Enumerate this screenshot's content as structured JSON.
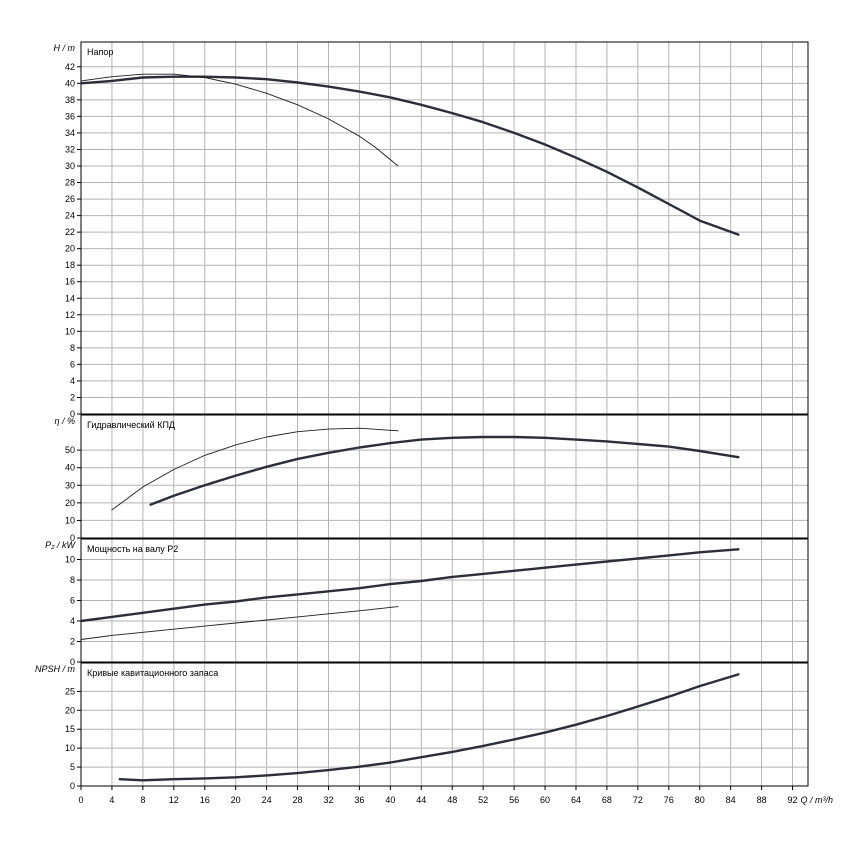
{
  "chart_data": {
    "type": "line",
    "colors": {
      "grid": "#b4b4b4",
      "frame": "#000000",
      "curve_main": "#2a2f3a",
      "curve_thin": "#1e1e1e"
    },
    "x": {
      "label": "Q / m³/h",
      "ticks": [
        0,
        4,
        8,
        12,
        16,
        20,
        24,
        28,
        32,
        36,
        40,
        44,
        48,
        52,
        56,
        60,
        64,
        68,
        72,
        76,
        80,
        84,
        88,
        92
      ],
      "range": [
        0,
        94
      ]
    },
    "panels": [
      {
        "id": "head",
        "title": "Напор",
        "ylabel": "H / m",
        "yrange": [
          0,
          45
        ],
        "yticks": [
          0,
          2,
          4,
          6,
          8,
          10,
          12,
          14,
          16,
          18,
          20,
          22,
          24,
          26,
          28,
          30,
          32,
          34,
          36,
          38,
          40,
          42
        ],
        "series": [
          {
            "weight": "thick",
            "points": [
              [
                0,
                40.0
              ],
              [
                4,
                40.3
              ],
              [
                8,
                40.7
              ],
              [
                12,
                40.8
              ],
              [
                16,
                40.8
              ],
              [
                20,
                40.7
              ],
              [
                24,
                40.5
              ],
              [
                28,
                40.1
              ],
              [
                32,
                39.6
              ],
              [
                36,
                39.0
              ],
              [
                40,
                38.3
              ],
              [
                44,
                37.4
              ],
              [
                48,
                36.4
              ],
              [
                52,
                35.3
              ],
              [
                56,
                34.0
              ],
              [
                60,
                32.6
              ],
              [
                64,
                31.0
              ],
              [
                68,
                29.3
              ],
              [
                72,
                27.4
              ],
              [
                76,
                25.4
              ],
              [
                80,
                23.4
              ],
              [
                85,
                21.7
              ]
            ]
          },
          {
            "weight": "thin",
            "points": [
              [
                0,
                40.3
              ],
              [
                4,
                40.8
              ],
              [
                8,
                41.1
              ],
              [
                12,
                41.1
              ],
              [
                16,
                40.7
              ],
              [
                20,
                39.9
              ],
              [
                24,
                38.8
              ],
              [
                28,
                37.4
              ],
              [
                32,
                35.7
              ],
              [
                36,
                33.6
              ],
              [
                38,
                32.3
              ],
              [
                41,
                30.0
              ]
            ]
          }
        ]
      },
      {
        "id": "efficiency",
        "title": "Гидравлический КПД",
        "ylabel": "η / %",
        "yrange": [
          0,
          70
        ],
        "yticks": [
          0,
          10,
          20,
          30,
          40,
          50
        ],
        "series": [
          {
            "weight": "thick",
            "points": [
              [
                9,
                19
              ],
              [
                12,
                24
              ],
              [
                16,
                30
              ],
              [
                20,
                35.5
              ],
              [
                24,
                40.5
              ],
              [
                28,
                45
              ],
              [
                32,
                48.5
              ],
              [
                36,
                51.5
              ],
              [
                40,
                54
              ],
              [
                44,
                56
              ],
              [
                48,
                57
              ],
              [
                52,
                57.5
              ],
              [
                56,
                57.5
              ],
              [
                60,
                57
              ],
              [
                64,
                56
              ],
              [
                68,
                55
              ],
              [
                72,
                53.5
              ],
              [
                76,
                52
              ],
              [
                80,
                49.5
              ],
              [
                85,
                46
              ]
            ]
          },
          {
            "weight": "thin",
            "points": [
              [
                4,
                16
              ],
              [
                8,
                29
              ],
              [
                12,
                39
              ],
              [
                16,
                47
              ],
              [
                20,
                53
              ],
              [
                24,
                57.5
              ],
              [
                28,
                60.5
              ],
              [
                32,
                62
              ],
              [
                36,
                62.5
              ],
              [
                41,
                61
              ]
            ]
          }
        ]
      },
      {
        "id": "power",
        "title": "Мощность на валу P2",
        "ylabel": "P₂ / kW",
        "yrange": [
          0,
          12
        ],
        "yticks": [
          0,
          2,
          4,
          6,
          8,
          10
        ],
        "series": [
          {
            "weight": "thick",
            "points": [
              [
                0,
                4.0
              ],
              [
                4,
                4.4
              ],
              [
                8,
                4.8
              ],
              [
                12,
                5.2
              ],
              [
                16,
                5.6
              ],
              [
                20,
                5.9
              ],
              [
                24,
                6.3
              ],
              [
                28,
                6.6
              ],
              [
                32,
                6.9
              ],
              [
                36,
                7.2
              ],
              [
                40,
                7.6
              ],
              [
                44,
                7.9
              ],
              [
                48,
                8.3
              ],
              [
                52,
                8.6
              ],
              [
                56,
                8.9
              ],
              [
                60,
                9.2
              ],
              [
                64,
                9.5
              ],
              [
                68,
                9.8
              ],
              [
                72,
                10.1
              ],
              [
                76,
                10.4
              ],
              [
                80,
                10.7
              ],
              [
                85,
                11.0
              ]
            ]
          },
          {
            "weight": "thin",
            "points": [
              [
                0,
                2.2
              ],
              [
                4,
                2.6
              ],
              [
                8,
                2.9
              ],
              [
                12,
                3.2
              ],
              [
                16,
                3.5
              ],
              [
                20,
                3.8
              ],
              [
                24,
                4.1
              ],
              [
                28,
                4.4
              ],
              [
                32,
                4.7
              ],
              [
                36,
                5.0
              ],
              [
                41,
                5.4
              ]
            ]
          }
        ]
      },
      {
        "id": "npsh",
        "title": "Кривые кавитационного запаса",
        "ylabel": "NPSH / m",
        "yrange": [
          0,
          32.5
        ],
        "yticks": [
          0,
          5,
          10,
          15,
          20,
          25
        ],
        "series": [
          {
            "weight": "thick",
            "points": [
              [
                5,
                1.8
              ],
              [
                8,
                1.5
              ],
              [
                12,
                1.8
              ],
              [
                16,
                2.0
              ],
              [
                20,
                2.3
              ],
              [
                24,
                2.8
              ],
              [
                28,
                3.4
              ],
              [
                32,
                4.2
              ],
              [
                36,
                5.1
              ],
              [
                40,
                6.2
              ],
              [
                44,
                7.6
              ],
              [
                48,
                9.0
              ],
              [
                52,
                10.6
              ],
              [
                56,
                12.3
              ],
              [
                60,
                14.1
              ],
              [
                64,
                16.2
              ],
              [
                68,
                18.5
              ],
              [
                72,
                21.0
              ],
              [
                76,
                23.6
              ],
              [
                80,
                26.4
              ],
              [
                85,
                29.5
              ]
            ]
          }
        ]
      }
    ]
  }
}
